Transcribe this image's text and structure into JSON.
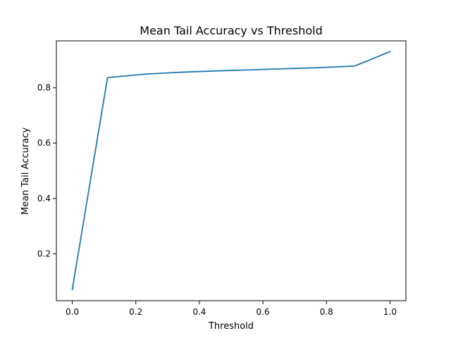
{
  "chart_data": {
    "type": "line",
    "title": "Mean Tail Accuracy vs Threshold",
    "xlabel": "Threshold",
    "ylabel": "Mean Tail Accuracy",
    "xlim": [
      -0.05,
      1.05
    ],
    "ylim": [
      0.03,
      0.97
    ],
    "grid": false,
    "x_ticks": [
      0.0,
      0.2,
      0.4,
      0.6,
      0.8,
      1.0
    ],
    "x_tick_labels": [
      "0.0",
      "0.2",
      "0.4",
      "0.6",
      "0.8",
      "1.0"
    ],
    "y_ticks": [
      0.2,
      0.4,
      0.6,
      0.8
    ],
    "y_tick_labels": [
      "0.2",
      "0.4",
      "0.6",
      "0.8"
    ],
    "series": [
      {
        "color": "#1f77b4",
        "x": [
          0.0,
          0.111,
          0.222,
          0.333,
          0.444,
          0.556,
          0.667,
          0.778,
          0.889,
          1.0
        ],
        "y": [
          0.07,
          0.837,
          0.849,
          0.856,
          0.861,
          0.865,
          0.869,
          0.873,
          0.879,
          0.931
        ]
      }
    ]
  }
}
